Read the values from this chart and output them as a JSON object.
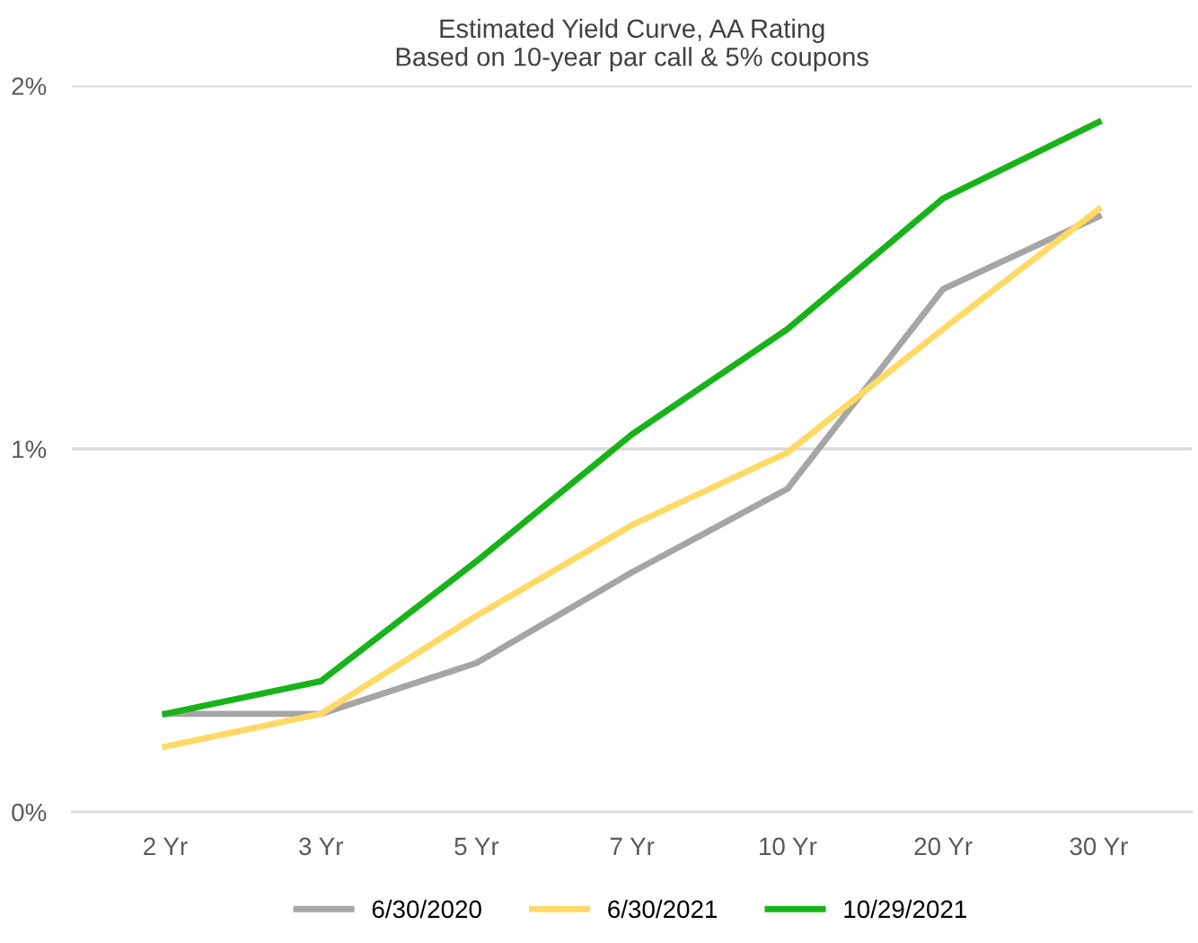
{
  "chart_data": {
    "type": "line",
    "title": "Estimated Yield Curve, AA Rating\nBased on 10-year par call & 5% coupons",
    "categories": [
      "2 Yr",
      "3 Yr",
      "5 Yr",
      "7 Yr",
      "10 Yr",
      "20 Yr",
      "30 Yr"
    ],
    "series": [
      {
        "name": "6/30/2020",
        "color": "#a5a5a5",
        "values": [
          0.27,
          0.27,
          0.41,
          0.66,
          0.89,
          1.44,
          1.64
        ]
      },
      {
        "name": "6/30/2021",
        "color": "#ffd966",
        "values": [
          0.18,
          0.27,
          0.54,
          0.79,
          0.99,
          1.33,
          1.66
        ]
      },
      {
        "name": "10/29/2021",
        "color": "#18b31a",
        "values": [
          0.27,
          0.36,
          0.69,
          1.04,
          1.33,
          1.69,
          1.9
        ]
      }
    ],
    "ylim": [
      0,
      2
    ],
    "yticks": [
      {
        "value": 0,
        "label": "0%"
      },
      {
        "value": 1,
        "label": "1%"
      },
      {
        "value": 2,
        "label": "2%"
      }
    ],
    "grid": "y",
    "legend": "bottom",
    "marker": "none",
    "line_style": "solid"
  }
}
